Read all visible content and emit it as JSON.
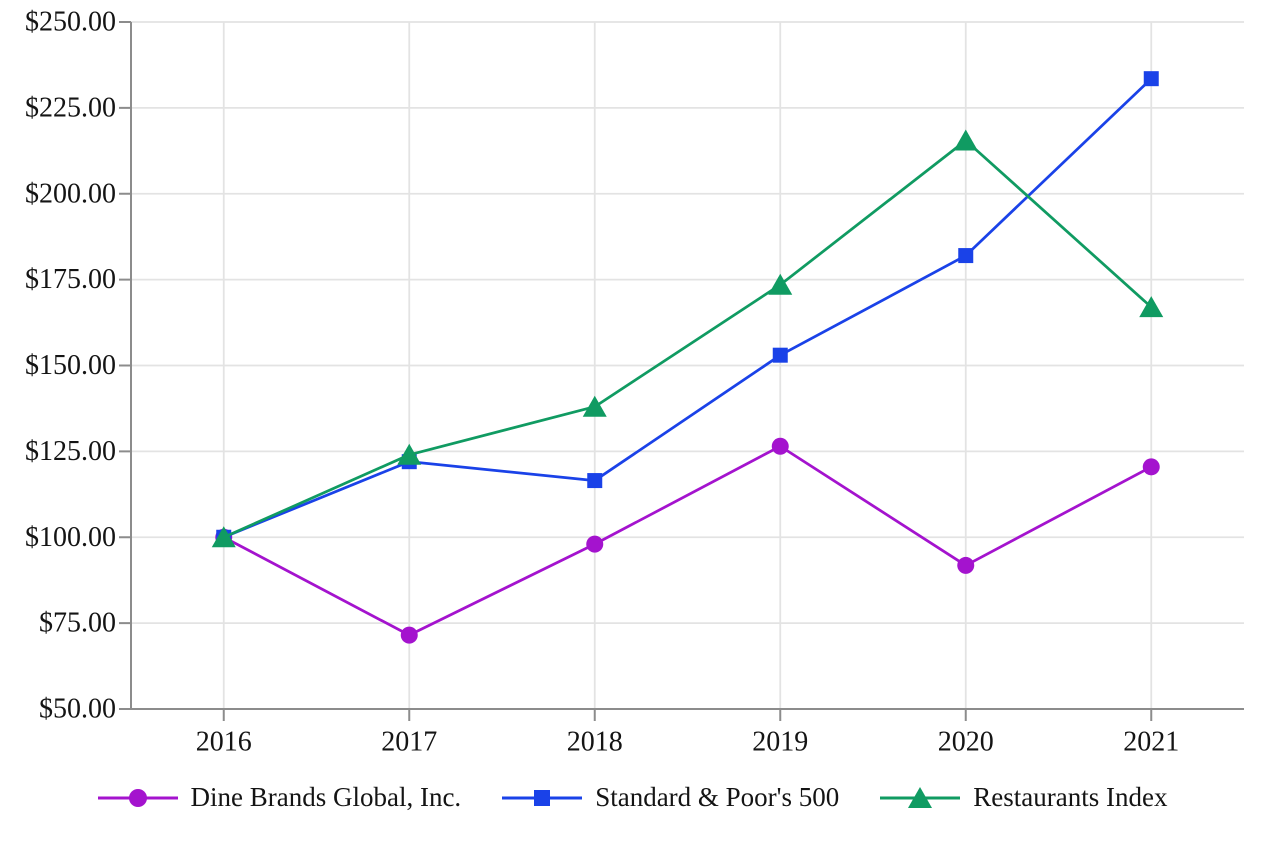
{
  "chart_data": {
    "type": "line",
    "title": "",
    "xlabel": "",
    "ylabel": "",
    "categories": [
      "2016",
      "2017",
      "2018",
      "2019",
      "2020",
      "2021"
    ],
    "series": [
      {
        "name": "Dine Brands Global, Inc.",
        "marker": "circle",
        "color": "#A413CE",
        "values": [
          100,
          71.5,
          98,
          126.5,
          91.8,
          120.5
        ]
      },
      {
        "name": "Standard & Poor's 500",
        "marker": "square",
        "color": "#1A42E8",
        "values": [
          100,
          122,
          116.5,
          153,
          182,
          233.5
        ]
      },
      {
        "name": "Restaurants Index",
        "marker": "triangle",
        "color": "#109B62",
        "values": [
          100,
          124,
          138,
          173.5,
          215.5,
          167
        ]
      }
    ],
    "y_axis": {
      "min": 50,
      "max": 250,
      "tick_step": 25,
      "tick_labels": [
        "$50.00",
        "$75.00",
        "$100.00",
        "$125.00",
        "$150.00",
        "$175.00",
        "$200.00",
        "$225.00",
        "$250.00"
      ]
    },
    "x_axis": {
      "tick_labels": [
        "2016",
        "2017",
        "2018",
        "2019",
        "2020",
        "2021"
      ]
    },
    "grid": true,
    "legend_position": "bottom",
    "colors": {
      "gridline": "#E3E3E3",
      "axis": "#8C8C8C",
      "text": "#141414",
      "background": "#FFFFFF"
    }
  }
}
